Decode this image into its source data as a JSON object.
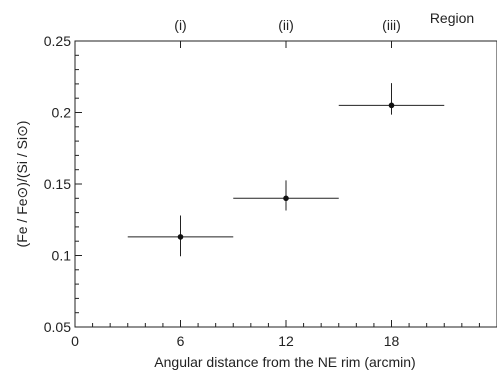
{
  "chart_data": {
    "type": "scatter",
    "xlabel": "Angular distance from the NE rim (arcmin)",
    "ylabel": "(Fe / Fe⊙)/(Si / Si⊙)",
    "xlim": [
      0,
      24
    ],
    "ylim": [
      0.05,
      0.25
    ],
    "xticks": [
      0,
      6,
      12,
      18
    ],
    "yticks": [
      0.05,
      0.1,
      0.15,
      0.2,
      0.25
    ],
    "ytick_labels": [
      "0.05",
      "0.1",
      "0.15",
      "0.2",
      "0.25"
    ],
    "top_axis_label": "Region",
    "regions": [
      {
        "label": "(i)",
        "x": 6
      },
      {
        "label": "(ii)",
        "x": 12
      },
      {
        "label": "(iii)",
        "x": 18
      }
    ],
    "points": [
      {
        "x": 6,
        "y": 0.113,
        "xerr_low": 3,
        "xerr_high": 3,
        "yerr_low": 0.0135,
        "yerr_high": 0.015
      },
      {
        "x": 12,
        "y": 0.14,
        "xerr_low": 3,
        "xerr_high": 3,
        "yerr_low": 0.0085,
        "yerr_high": 0.0125
      },
      {
        "x": 18,
        "y": 0.205,
        "xerr_low": 3,
        "xerr_high": 3,
        "yerr_low": 0.0065,
        "yerr_high": 0.0155
      }
    ],
    "grid": false
  }
}
